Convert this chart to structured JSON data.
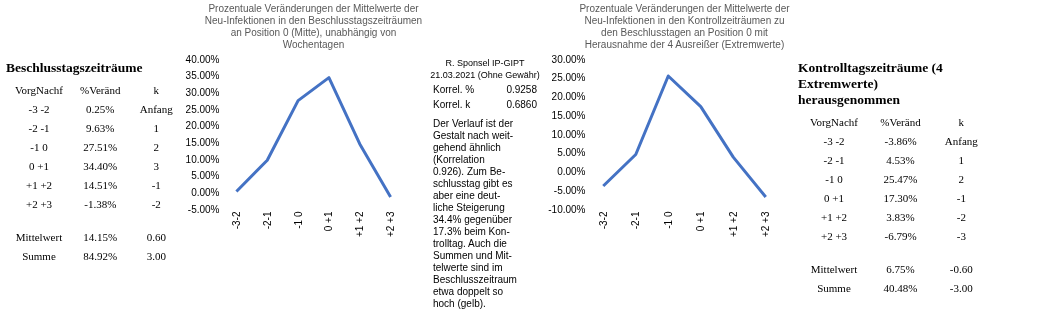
{
  "chart_data": [
    {
      "type": "other",
      "title": "Beschlusstagszeiträume",
      "annotations": [
        "VorgNachf",
        "%Veränd",
        "k",
        "-3 -2",
        "0.25%",
        "Anfang",
        "-2 -1",
        "9.63%",
        "1",
        "-1  0",
        "27.51%",
        "2",
        "0 +1",
        "34.40%",
        "3",
        "+1 +2",
        "14.51%",
        "-1",
        "+2 +3",
        "-1.38%",
        "-2",
        "Mittelwert",
        "14.15%",
        "0.60",
        "Summe",
        "84.92%",
        "3.00"
      ]
    },
    {
      "type": "line",
      "title": "Prozentuale Veränderungen der Mittelwerte der Neu-Infektionen in den Beschlusstagszeiträumen an Position 0 (Mitte), unabhängig von Wochentagen",
      "categories": [
        "-3-2",
        "-2-1",
        "-1 0",
        "0 +1",
        "+1 +2",
        "+2 +3"
      ],
      "values": [
        0.25,
        9.63,
        27.51,
        34.4,
        14.51,
        -1.38
      ],
      "color": "#4472c4",
      "ylim": [
        -5,
        40
      ],
      "yticks": [
        {
          "value": -5,
          "label": "-5.00%"
        },
        {
          "value": 0,
          "label": "0.00%"
        },
        {
          "value": 5,
          "label": "5.00%"
        },
        {
          "value": 10,
          "label": "10.00%"
        },
        {
          "value": 15,
          "label": "15.00%"
        },
        {
          "value": 20,
          "label": "20.00%"
        },
        {
          "value": 25,
          "label": "25.00%"
        },
        {
          "value": 30,
          "label": "30.00%"
        },
        {
          "value": 35,
          "label": "35.00%"
        },
        {
          "value": 40,
          "label": "40.00%"
        }
      ],
      "grid": false,
      "legend": false
    },
    {
      "type": "other",
      "annotations": [
        "R. Sponsel IP-GIPT 21.03.2021 (Ohne Gewähr)",
        "Korrel. %",
        "0.9258",
        "Korrel. k",
        "0.6860",
        "Der Verlauf ist der\nGestalt nach weit-\ngehend ähnlich\n(Korrelation\n0.926). Zum Be-\nschlusstag gibt es\naber eine deut-\nliche Steigerung\n34.4% gegenüber\n17.3% beim Kon-\ntrolltag. Auch die\nSummen und Mit-\ntelwerte sind im\nBeschlusszeitraum\netwa doppelt so\nhoch (gelb)."
      ]
    },
    {
      "type": "line",
      "title": "Prozentuale Veränderungen der Mittelwerte der Neu-Infektionen in den Kontrollzeiträumen zu den Beschlusstagen an Position 0 mit Herausnahme der 4 Ausreißer (Extremwerte)",
      "categories": [
        "-3-2",
        "-2-1",
        "-1 0",
        "0 +1",
        "+1 +2",
        "+2 +3"
      ],
      "values": [
        -3.86,
        4.53,
        25.47,
        17.3,
        3.83,
        -6.79
      ],
      "color": "#4472c4",
      "ylim": [
        -10,
        30
      ],
      "yticks": [
        {
          "value": -10,
          "label": "-10.00%"
        },
        {
          "value": -5,
          "label": "-5.00%"
        },
        {
          "value": 0,
          "label": "0.00%"
        },
        {
          "value": 5,
          "label": "5.00%"
        },
        {
          "value": 10,
          "label": "10.00%"
        },
        {
          "value": 15,
          "label": "15.00%"
        },
        {
          "value": 20,
          "label": "20.00%"
        },
        {
          "value": 25,
          "label": "25.00%"
        },
        {
          "value": 30,
          "label": "30.00%"
        }
      ],
      "grid": false,
      "legend": false
    },
    {
      "type": "other",
      "title": "Kontrolltagszeiträume (4 Extremwerte) herausgenommen",
      "annotations": [
        "VorgNachf",
        "%Veränd",
        "k",
        "-3 -2",
        "-3.86%",
        "Anfang",
        "-2 -1",
        "4.53%",
        "1",
        "-1  0",
        "25.47%",
        "2",
        "0 +1",
        "17.30%",
        "-1",
        "+1 +2",
        "3.83%",
        "-2",
        "+2 +3",
        "-6.79%",
        "-3",
        "Mittelwert",
        "6.75%",
        "-0.60",
        "Summe",
        "40.48%",
        "-3.00"
      ]
    }
  ]
}
